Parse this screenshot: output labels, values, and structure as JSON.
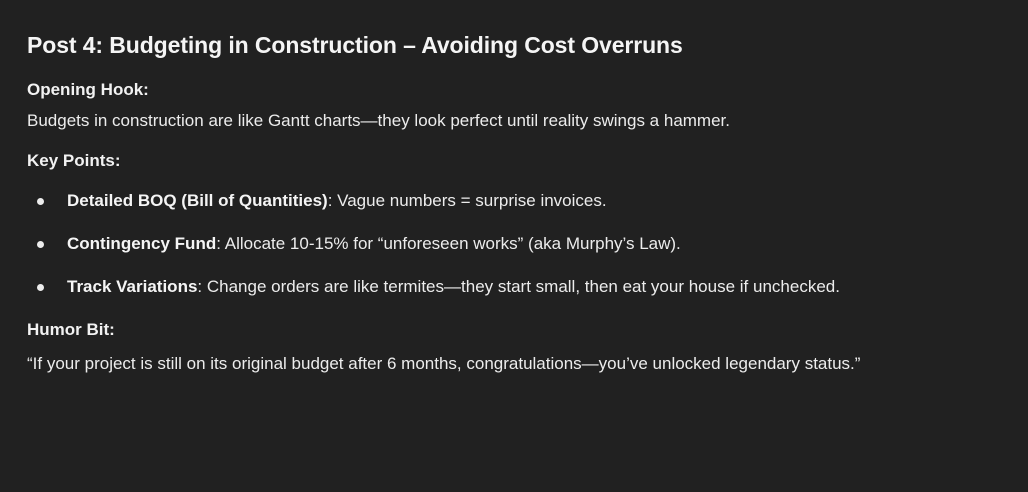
{
  "post": {
    "title": "Post 4: Budgeting in Construction – Avoiding Cost Overruns",
    "opening_hook_label": "Opening Hook:",
    "opening_hook_text": "Budgets in construction are like Gantt charts—they look perfect until reality swings a hammer.",
    "key_points_label": "Key Points:",
    "key_points": [
      {
        "bold": "Detailed BOQ (Bill of Quantities)",
        "text": ": Vague numbers = surprise invoices."
      },
      {
        "bold": "Contingency Fund",
        "text": ": Allocate 10-15% for “unforeseen works” (aka Murphy’s Law)."
      },
      {
        "bold": "Track Variations",
        "text": ": Change orders are like termites—they start small, then eat your house if unchecked."
      }
    ],
    "humor_label": "Humor Bit:",
    "humor_text": "“If your project is still on its original budget after 6 months, congratulations—you’ve unlocked legendary status.”"
  }
}
